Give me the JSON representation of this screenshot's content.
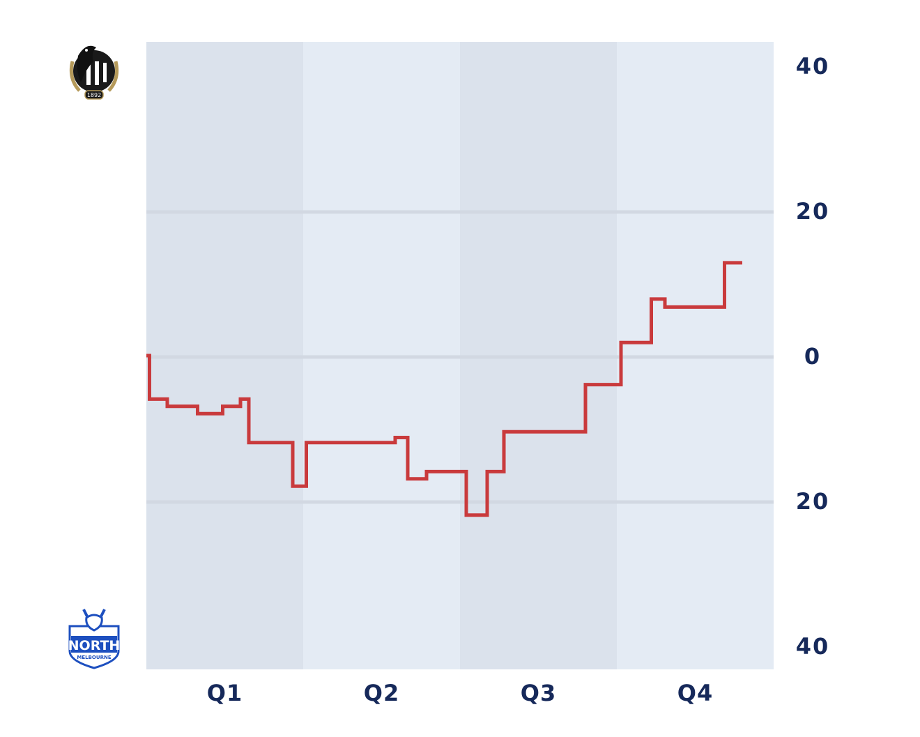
{
  "chart_data": {
    "type": "line",
    "step": true,
    "x_categories": [
      "Q1",
      "Q2",
      "Q3",
      "Q4"
    ],
    "y_ticks": [
      40,
      20,
      0,
      20,
      40
    ],
    "y_range": [
      -40,
      40
    ],
    "grid": true,
    "series": [
      {
        "color": "#c93a3c",
        "points": [
          [
            0.0,
            0
          ],
          [
            0.03,
            -6
          ],
          [
            0.2,
            -7
          ],
          [
            0.49,
            -8
          ],
          [
            0.73,
            -7
          ],
          [
            0.9,
            -6
          ],
          [
            0.98,
            -12
          ],
          [
            1.4,
            -18
          ],
          [
            1.53,
            -12
          ],
          [
            2.38,
            -11.3
          ],
          [
            2.5,
            -17
          ],
          [
            2.68,
            -16
          ],
          [
            3.06,
            -22
          ],
          [
            3.26,
            -16
          ],
          [
            3.42,
            -10.5
          ],
          [
            4.2,
            -4
          ],
          [
            4.54,
            1.8
          ],
          [
            4.83,
            7.8
          ],
          [
            4.96,
            6.7
          ],
          [
            5.53,
            12.8
          ],
          [
            5.7,
            12.8
          ]
        ]
      }
    ],
    "colors": {
      "band_dark": "#dbe2ec",
      "band_light": "#e4ebf4",
      "gridline": "#d2d8e2",
      "text": "#16295a"
    }
  },
  "logos": {
    "top": {
      "icon": "magpie-team-logo",
      "text": "1892"
    },
    "bottom": {
      "icon": "kangaroo-team-logo",
      "text": "NORTH",
      "subtext": "MELBOURNE"
    }
  }
}
